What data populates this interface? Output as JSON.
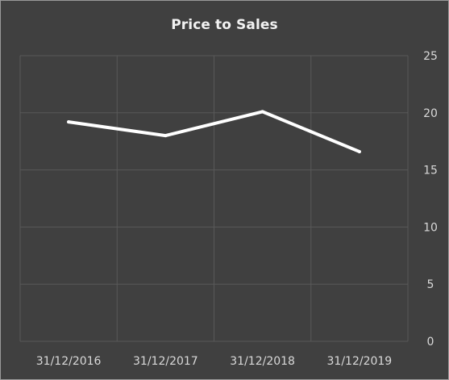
{
  "chart_data": {
    "type": "line",
    "title": "Price to Sales",
    "xlabel": "",
    "ylabel": "",
    "categories": [
      "31/12/2016",
      "31/12/2017",
      "31/12/2018",
      "31/12/2019"
    ],
    "series": [
      {
        "values": [
          19.2,
          18.0,
          20.1,
          16.6
        ]
      }
    ],
    "ylim": [
      0,
      25
    ],
    "yticks": [
      0,
      5,
      10,
      15,
      20,
      25
    ],
    "y_axis_position": "right",
    "grid": true,
    "legend": "none",
    "colors": {
      "background": "#404040",
      "line": "#ffffff",
      "grid": "#595959",
      "text": "#d9d9d9",
      "title": "#f2f2f2"
    }
  }
}
